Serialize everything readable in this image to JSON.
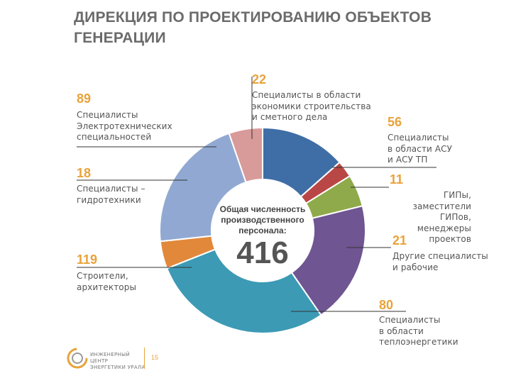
{
  "title": "ДИРЕКЦИЯ ПО ПРОЕКТИРОВАНИЮ ОБЪЕКТОВ ГЕНЕРАЦИИ",
  "center": {
    "label": "Общая численность производственного персонала:",
    "total": "416"
  },
  "chart_data": {
    "type": "pie",
    "total": 416,
    "slices": [
      {
        "value": 56,
        "label": "Специалисты в области АСУ и АСУ ТП",
        "color": "#3f6ea6"
      },
      {
        "value": 11,
        "label": "ГИПы, заместители ГИПов, менеджеры проектов",
        "color": "#b94745"
      },
      {
        "value": 21,
        "label": "Другие специалисты и рабочие",
        "color": "#8faa4a"
      },
      {
        "value": 80,
        "label": "Специалисты в области теплоэнергетики",
        "color": "#6f5591"
      },
      {
        "value": 119,
        "label": "Строители, архитекторы",
        "color": "#3c9ab5"
      },
      {
        "value": 18,
        "label": "Специалисты – гидротехники",
        "color": "#e2883a"
      },
      {
        "value": 89,
        "label": "Специалисты Электротехнических специальностей",
        "color": "#91a9d2"
      },
      {
        "value": 22,
        "label": "Специалисты в области экономики строительства и сметного дела",
        "color": "#d99a9a"
      }
    ]
  },
  "labels": {
    "econ": {
      "value": "22",
      "text": [
        "Специалисты в области",
        "экономики строительства",
        "и сметного дела"
      ]
    },
    "elec": {
      "value": "89",
      "text": [
        "Специалисты",
        "Электротехнических",
        "специальностей"
      ]
    },
    "hydro": {
      "value": "18",
      "text": [
        "Специалисты –",
        "гидротехники"
      ]
    },
    "build": {
      "value": "119",
      "text": [
        "Строители,",
        "архитекторы"
      ]
    },
    "asu": {
      "value": "56",
      "text": [
        "Специалисты",
        "в области АСУ",
        "и АСУ ТП"
      ]
    },
    "gip": {
      "value": "11",
      "text": [
        "ГИПы, заместители",
        "ГИПов, менеджеры",
        "проектов"
      ]
    },
    "other": {
      "value": "21",
      "text": [
        "Другие специалисты",
        "и рабочие"
      ]
    },
    "heat": {
      "value": "80",
      "text": [
        "Специалисты",
        "в области",
        "теплоэнергетики"
      ]
    }
  },
  "footer": {
    "logo_text": [
      "ИНЖЕНЕРНЫЙ ЦЕНТР",
      "ЭНЕРГЕТИКИ УРАЛА"
    ],
    "page": "15"
  }
}
